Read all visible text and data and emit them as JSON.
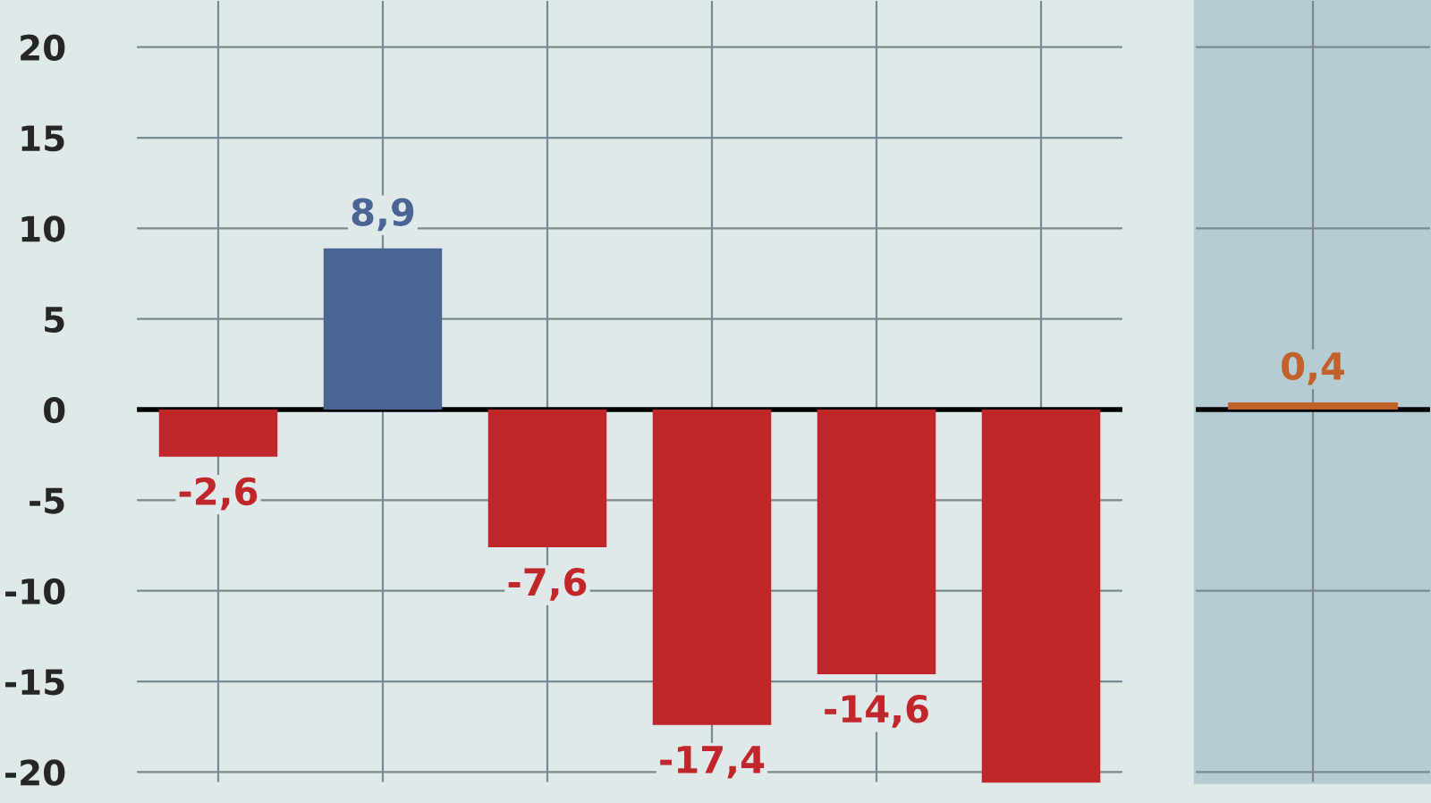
{
  "chart_data": [
    {
      "type": "bar",
      "categories": [
        null,
        null,
        null,
        null,
        null,
        null
      ],
      "values": [
        -2.6,
        8.9,
        -7.6,
        -17.4,
        -14.6,
        -20.6
      ],
      "colors": [
        "#c0262a",
        "#4a6494",
        "#c0262a",
        "#c0262a",
        "#c0262a",
        "#c0262a"
      ],
      "value_labels": [
        "-2,6",
        "8,9",
        "-7,6",
        "-17,4",
        "-14,6",
        null
      ],
      "ylim": [
        -20.6,
        22.6
      ],
      "yticks": [
        20,
        15,
        10,
        5,
        0,
        -5,
        -10,
        -15,
        -20
      ],
      "grid": true,
      "ref_lines": [
        {
          "axis": "y",
          "value": 0,
          "color": "#000000"
        }
      ]
    },
    {
      "type": "bar",
      "categories": [
        null
      ],
      "values": [
        0.4
      ],
      "colors": [
        "#c0622a"
      ],
      "value_labels": [
        "0,4"
      ],
      "ylim": [
        -20.6,
        22.6
      ],
      "yticks": [
        20,
        10,
        0,
        -10,
        -20
      ],
      "tick_labels": false,
      "grid": true,
      "ref_lines": [
        {
          "axis": "y",
          "value": 0,
          "color": "#000000"
        }
      ]
    }
  ]
}
